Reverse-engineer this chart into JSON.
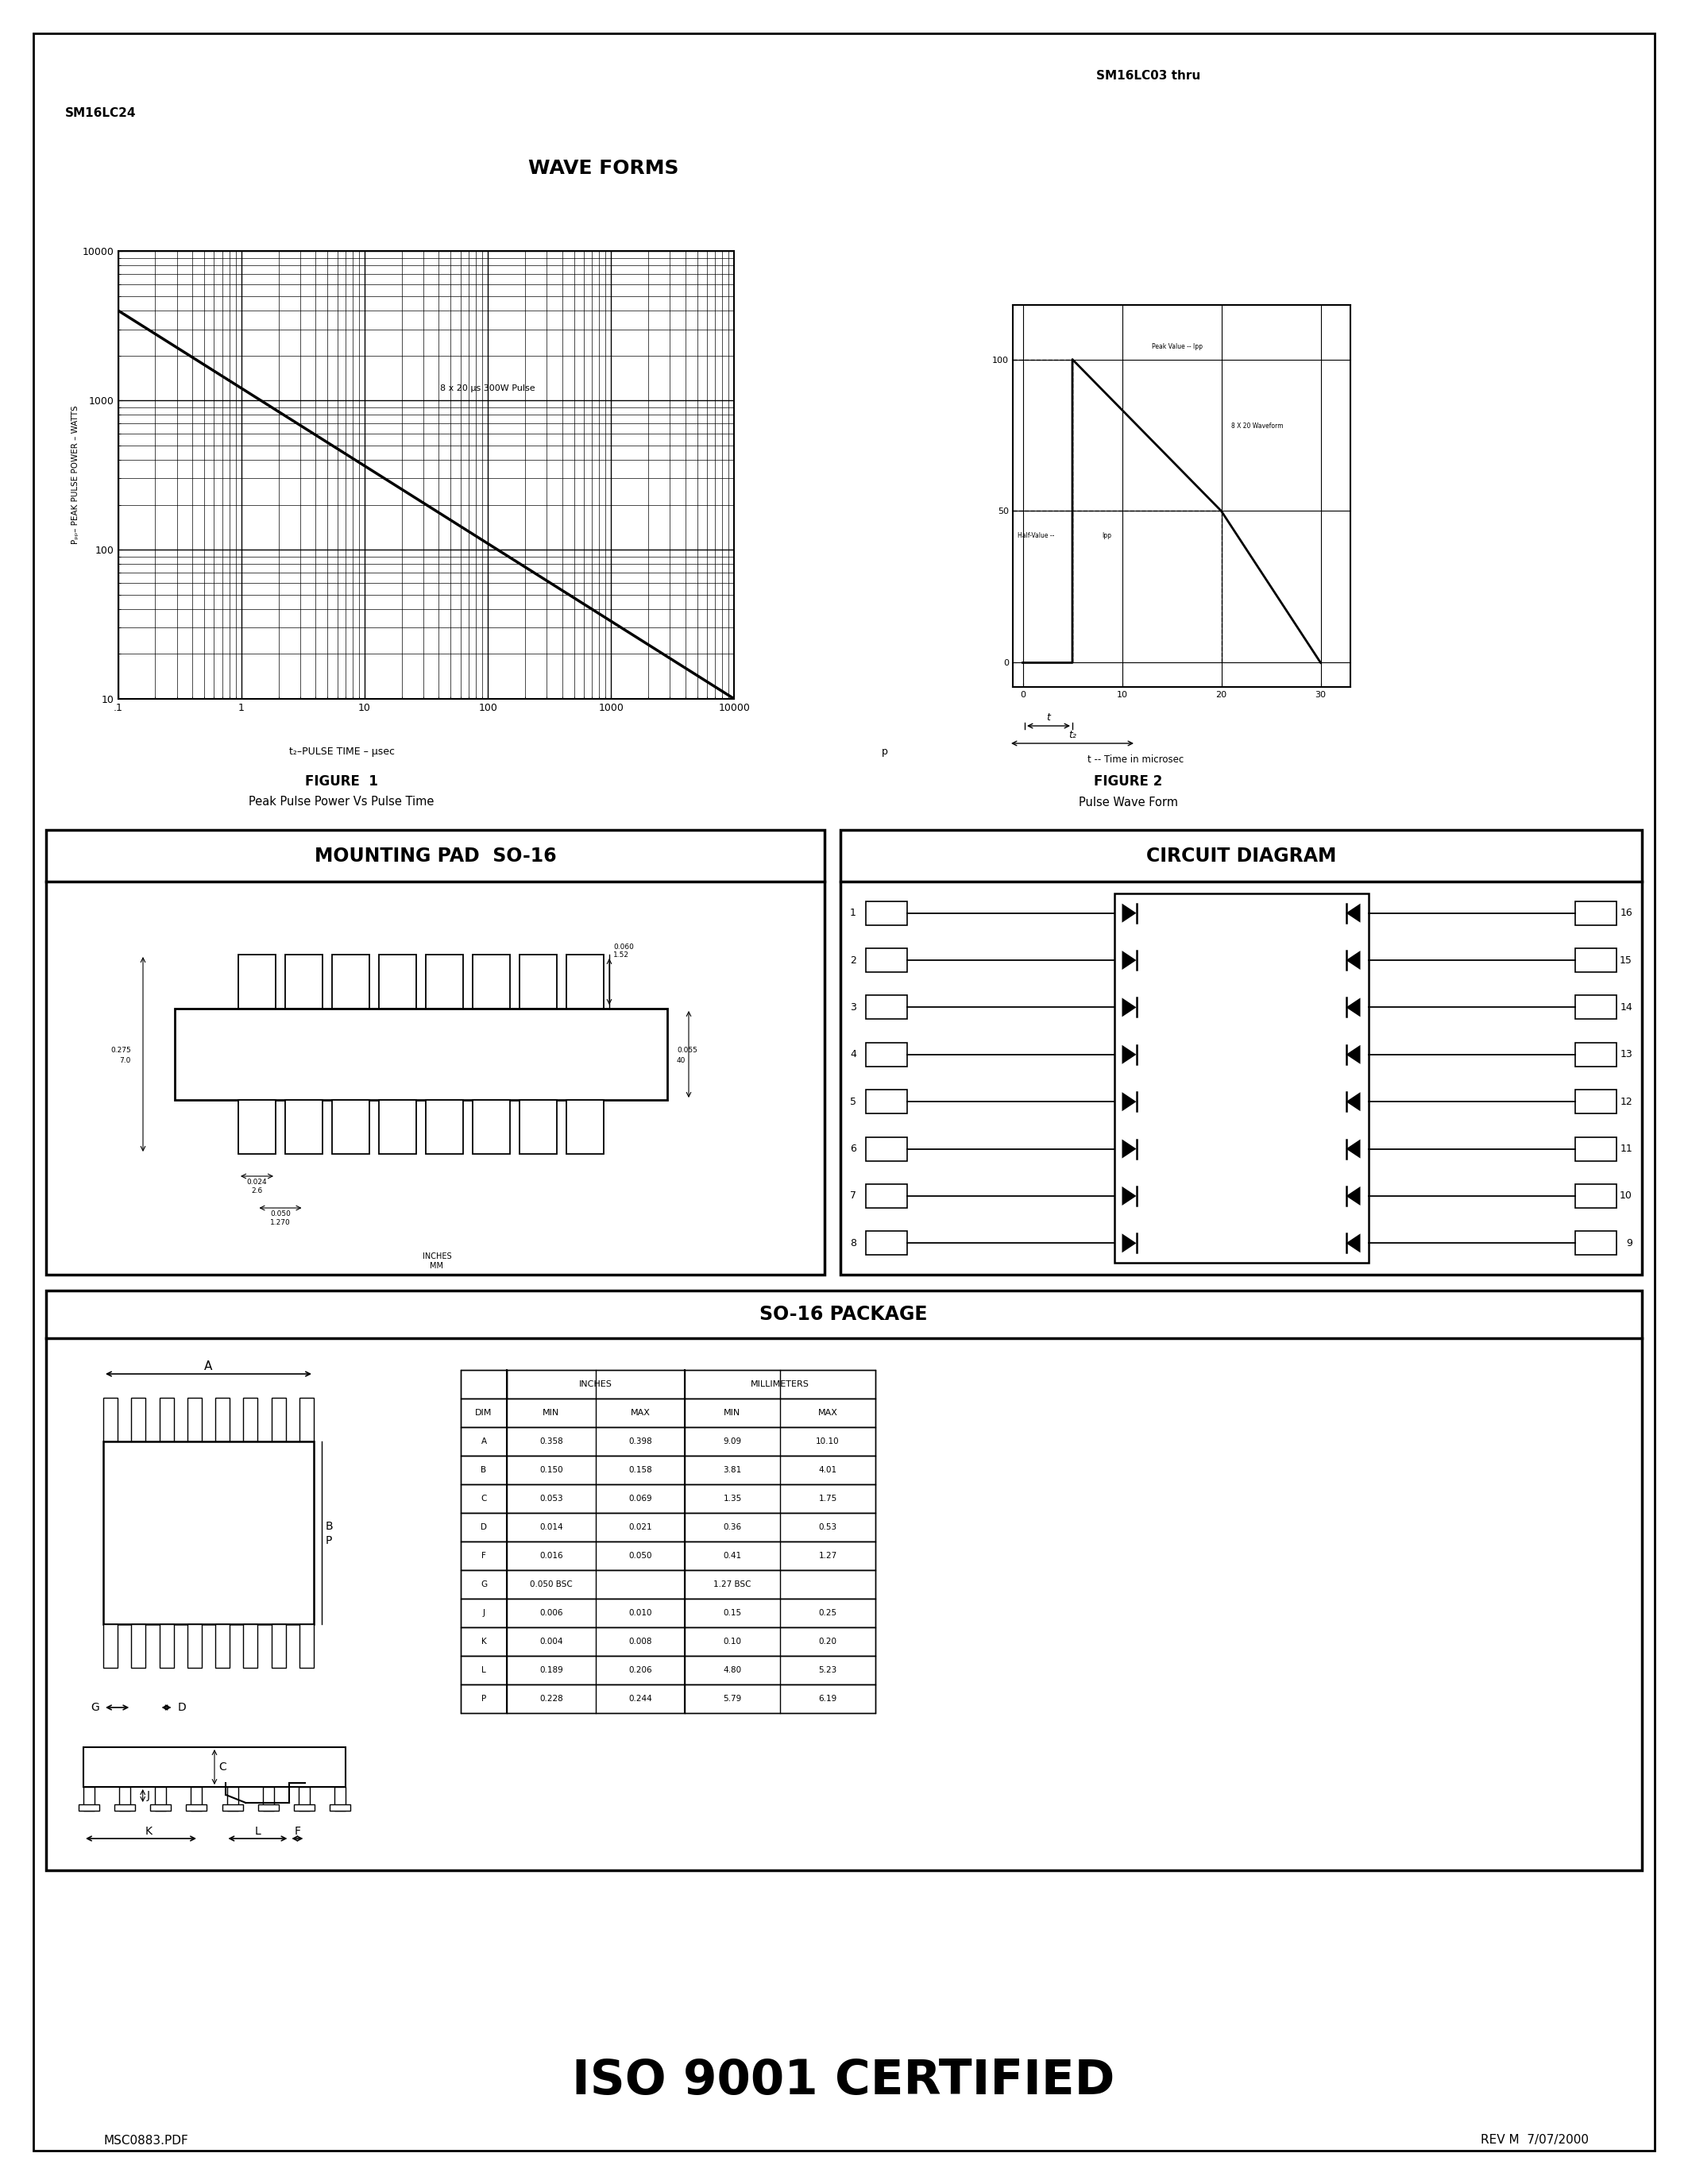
{
  "page_title_right": "SM16LC03 thru",
  "page_title_left": "SM16LC24",
  "wave_forms_title": "WAVE FORMS",
  "fig1_title": "FIGURE  1",
  "fig1_subtitle": "Peak Pulse Power Vs Pulse Time",
  "fig1_xlabel": "t₂–PULSE TIME – μsec",
  "fig1_ylabel": "Pₚₚ– PEAK PULSE POWER – WATTS",
  "fig1_annotation": "8 x 20 μs 300W Pulse",
  "fig2_title": "FIGURE 2",
  "fig2_subtitle": "Pulse Wave Form",
  "fig2_time_label": "t -- Time in microsec",
  "mount_title": "MOUNTING PAD  SO-16",
  "circuit_title": "CIRCUIT DIAGRAM",
  "pkg_title": "SO-16 PACKAGE",
  "iso_text": "ISO 9001 CERTIFIED",
  "footer_left": "MSC0883.PDF",
  "footer_right": "REV M  7/07/2000",
  "table_rows": [
    [
      "A",
      "0.358",
      "0.398",
      "9.09",
      "10.10"
    ],
    [
      "B",
      "0.150",
      "0.158",
      "3.81",
      "4.01"
    ],
    [
      "C",
      "0.053",
      "0.069",
      "1.35",
      "1.75"
    ],
    [
      "D",
      "0.014",
      "0.021",
      "0.36",
      "0.53"
    ],
    [
      "F",
      "0.016",
      "0.050",
      "0.41",
      "1.27"
    ],
    [
      "G",
      "0.050 BSC",
      "",
      "1.27 BSC",
      ""
    ],
    [
      "J",
      "0.006",
      "0.010",
      "0.15",
      "0.25"
    ],
    [
      "K",
      "0.004",
      "0.008",
      "0.10",
      "0.20"
    ],
    [
      "L",
      "0.189",
      "0.206",
      "4.80",
      "5.23"
    ],
    [
      "P",
      "0.228",
      "0.244",
      "5.79",
      "6.19"
    ]
  ]
}
